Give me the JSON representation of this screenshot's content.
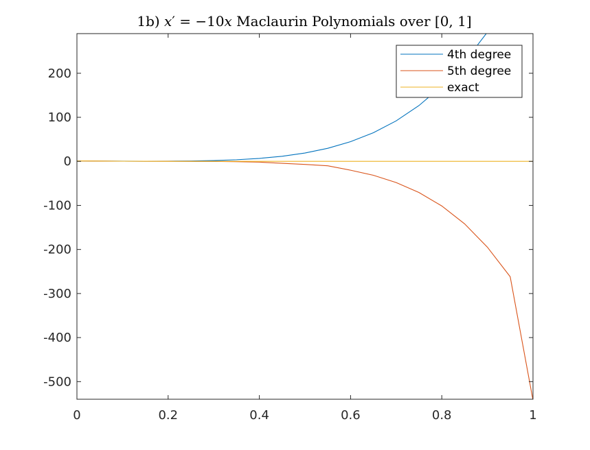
{
  "chart_data": {
    "type": "line",
    "title_parts": {
      "prefix": "1b) ",
      "math_x": "x",
      "math_prime": "′",
      "math_eq": " = −10",
      "math_x2": "x",
      "suffix": " Maclaurin Polynomials over [0, 1]"
    },
    "xlabel": "",
    "ylabel": "",
    "xlim": [
      0,
      1
    ],
    "ylim": [
      -540,
      290
    ],
    "x_ticks": [
      0,
      0.2,
      0.4,
      0.6,
      0.8,
      1
    ],
    "x_tick_labels": [
      "0",
      "0.2",
      "0.4",
      "0.6",
      "0.8",
      "1"
    ],
    "y_ticks": [
      -500,
      -400,
      -300,
      -200,
      -100,
      0,
      100,
      200
    ],
    "y_tick_labels": [
      "-500",
      "-400",
      "-300",
      "-200",
      "-100",
      "0",
      "100",
      "200"
    ],
    "grid": false,
    "legend_position": "top-right",
    "series": [
      {
        "name": "4th degree",
        "color": "#0072BD",
        "x": [
          0,
          0.05,
          0.1,
          0.15,
          0.2,
          0.25,
          0.3,
          0.35,
          0.4,
          0.45,
          0.5,
          0.55,
          0.6,
          0.65,
          0.7,
          0.75,
          0.8,
          0.85,
          0.9,
          0.95,
          1
        ],
        "y": [
          1,
          0.6,
          0.38,
          0.33,
          0.47,
          0.9,
          1.86,
          3.66,
          6.73,
          11.6,
          19.0,
          29.7,
          44.7,
          65.0,
          91.9,
          126.7,
          170.9,
          225.9,
          293.3,
          374.8,
          291.0
        ]
      },
      {
        "name": "5th degree",
        "color": "#D95319",
        "x": [
          0,
          0.05,
          0.1,
          0.15,
          0.2,
          0.25,
          0.3,
          0.35,
          0.4,
          0.45,
          0.5,
          0.55,
          0.6,
          0.65,
          0.7,
          0.75,
          0.8,
          0.85,
          0.9,
          0.95,
          1
        ],
        "y": [
          1,
          0.6,
          0.37,
          0.26,
          0.2,
          0.06,
          -0.17,
          -0.8,
          -1.8,
          -4.4,
          -7.0,
          -10.0,
          -20.1,
          -31.6,
          -48.1,
          -70.7,
          -101.2,
          -141.8,
          -194.8,
          -261.9,
          -542.3
        ]
      },
      {
        "name": "exact",
        "color": "#EDB120",
        "x": [
          0,
          0.05,
          0.1,
          0.15,
          0.2,
          0.3,
          0.4,
          0.5,
          0.6,
          0.7,
          0.8,
          0.9,
          1
        ],
        "y": [
          1,
          0.61,
          0.37,
          0.22,
          0.14,
          0.05,
          0.02,
          0.007,
          0.002,
          0.001,
          0.0003,
          0.0001,
          5e-05
        ]
      }
    ]
  }
}
